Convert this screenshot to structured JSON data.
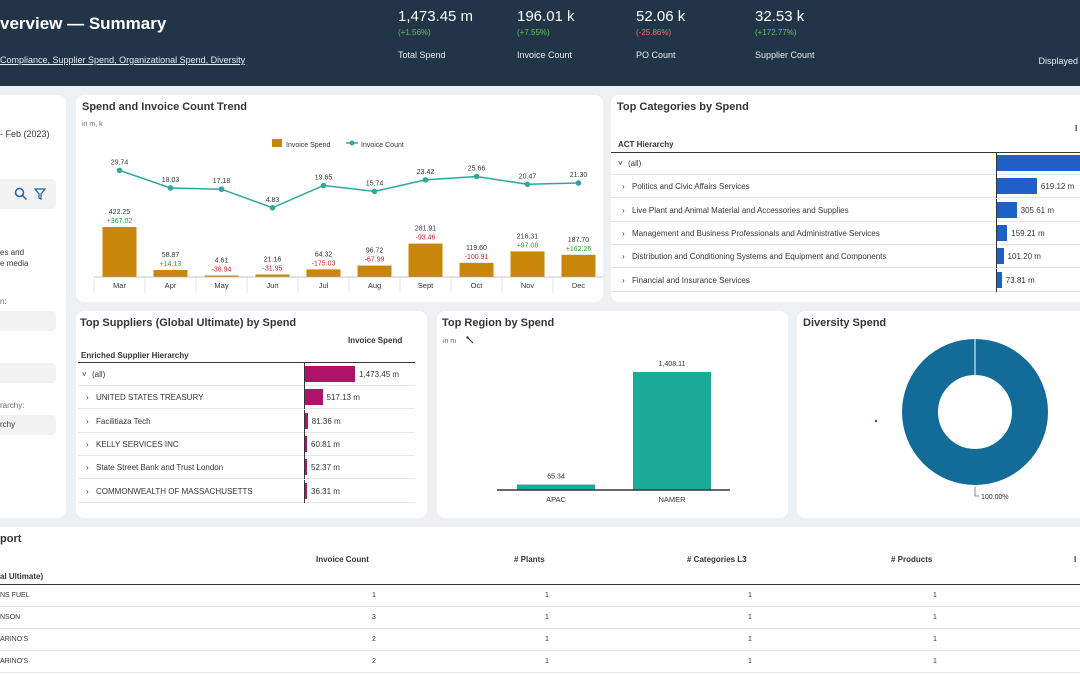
{
  "header": {
    "title": "verview — Summary",
    "subtitle": "Compliance, Supplier Spend, Organizational Spend, Diversity",
    "right_text": "Displayed",
    "kpis": [
      {
        "value": "1,473.45 m",
        "delta": "(+1.56%)",
        "delta_dir": "pos",
        "label": "Total Spend"
      },
      {
        "value": "196.01 k",
        "delta": "(+7.55%)",
        "delta_dir": "pos",
        "label": "Invoice Count"
      },
      {
        "value": "52.06 k",
        "delta": "(-25.86%)",
        "delta_dir": "neg",
        "label": "PO Count"
      },
      {
        "value": "32.53 k",
        "delta": "(+172.77%)",
        "delta_dir": "pos",
        "label": "Supplier Count"
      }
    ]
  },
  "filter": {
    "date": "- Feb (2023)",
    "text_line1": "es and",
    "text_line2": "e media",
    "label1": "n:",
    "label2": "rarchy:",
    "box3": "rchy"
  },
  "trend": {
    "title": "Spend and Invoice Count Trend",
    "units": "in m, k",
    "legend_spend": "Invoice Spend",
    "legend_count": "Invoice Count",
    "colors": {
      "bar": "#c8860a",
      "line": "#2ea89e",
      "pos": "#2e9f2e",
      "neg": "#d32030"
    }
  },
  "chart_data": {
    "type": "bar",
    "categories": [
      "Mar",
      "Apr",
      "May",
      "Jun",
      "Jul",
      "Aug",
      "Sept",
      "Oct",
      "Nov",
      "Dec"
    ],
    "series": [
      {
        "name": "Invoice Spend",
        "values": [
          422.25,
          58.87,
          4.61,
          21.16,
          64.32,
          96.72,
          281.91,
          119.6,
          216.31,
          187.7
        ]
      },
      {
        "name": "Invoice Count",
        "values": [
          29.74,
          18.03,
          17.18,
          4.83,
          19.65,
          15.74,
          23.42,
          25.66,
          20.47,
          21.3
        ]
      }
    ],
    "bar_labels": [
      "422.25",
      "58.87",
      "4.61",
      "21.16",
      "64.32",
      "96.72",
      "281.91",
      "119.60",
      "216.31",
      "187.70"
    ],
    "line_labels": [
      "29.74",
      "18.03",
      "17.18",
      "4.83",
      "19.65",
      "15.74",
      "23.42",
      "25.66",
      "20.47",
      "21.30"
    ],
    "deltas": [
      "+367.02",
      "+14.13",
      "-38.94",
      "-31.95",
      "-175.03",
      "-67.99",
      "-93.46",
      "-100.91",
      "+97.08",
      "+162.26"
    ]
  },
  "categories": {
    "title": "Top Categories by Spend",
    "col_header": "ACT Hierarchy",
    "right_header": "I",
    "bar_color": "#1f5fc8",
    "rows": [
      {
        "label": "(all)",
        "value": "",
        "frac": 1.0,
        "expanded": true
      },
      {
        "label": "Politics and Civic Affairs Services",
        "value": "619.12 m",
        "frac": 0.42
      },
      {
        "label": "Live Plant and Animal Material and Accessories and Supplies",
        "value": "305.61 m",
        "frac": 0.207
      },
      {
        "label": "Management and Business Professionals and Administrative Services",
        "value": "159.21 m",
        "frac": 0.108
      },
      {
        "label": "Distribution and Conditioning Systems and Equipment and Components",
        "value": "101.20 m",
        "frac": 0.069
      },
      {
        "label": "Financial and Insurance Services",
        "value": "73.81 m",
        "frac": 0.05
      }
    ]
  },
  "suppliers": {
    "title": "Top Suppliers (Global Ultimate) by Spend",
    "col_header": "Enriched Supplier Hierarchy",
    "val_header": "Invoice Spend",
    "bar_color": "#b0126a",
    "rows": [
      {
        "label": "(all)",
        "value": "1,473.45 m",
        "frac": 1.0,
        "expanded": true
      },
      {
        "label": "UNITED STATES TREASURY",
        "value": "517.13 m",
        "frac": 0.351
      },
      {
        "label": "Facilitiaza Tech",
        "value": "81.36 m",
        "frac": 0.055
      },
      {
        "label": "KELLY SERVICES INC",
        "value": "60.81 m",
        "frac": 0.041
      },
      {
        "label": "State Street Bank and Trust London",
        "value": "52.37 m",
        "frac": 0.036
      },
      {
        "label": "COMMONWEALTH OF MASSACHUSETTS",
        "value": "36.31 m",
        "frac": 0.025
      }
    ]
  },
  "region": {
    "title": "Top Region by Spend",
    "units": "in m",
    "bar_color": "#1aaa98",
    "bars": [
      {
        "label": "APAC",
        "value": 65.34,
        "value_text": "65.34"
      },
      {
        "label": "NAMER",
        "value": 1408.11,
        "value_text": "1,408.11"
      }
    ]
  },
  "diversity": {
    "title": "Diversity Spend",
    "ring_color": "#136c97",
    "value": 100.0,
    "label": "100.00%"
  },
  "report": {
    "title": "port",
    "headers": [
      "Invoice Count",
      "# Plants",
      "# Categories L3",
      "# Products",
      "I"
    ],
    "row_header": "al Ultimate)",
    "rows": [
      {
        "name": "NS FUEL",
        "cells": [
          "1",
          "1",
          "1",
          "1"
        ]
      },
      {
        "name": "NSON",
        "cells": [
          "3",
          "1",
          "1",
          "1"
        ]
      },
      {
        "name": "ARINO'S",
        "cells": [
          "2",
          "1",
          "1",
          "1"
        ]
      },
      {
        "name": "ARINO'S",
        "cells": [
          "2",
          "1",
          "1",
          "1"
        ]
      }
    ]
  }
}
